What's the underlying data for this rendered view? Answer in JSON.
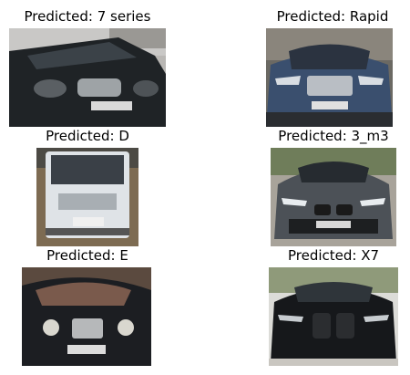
{
  "predictions": [
    {
      "caption": "Predicted: 7 series"
    },
    {
      "caption": "Predicted: Rapid"
    },
    {
      "caption": "Predicted: D"
    },
    {
      "caption": "Predicted: 3_m3"
    },
    {
      "caption": "Predicted: E"
    },
    {
      "caption": "Predicted: X7"
    }
  ]
}
